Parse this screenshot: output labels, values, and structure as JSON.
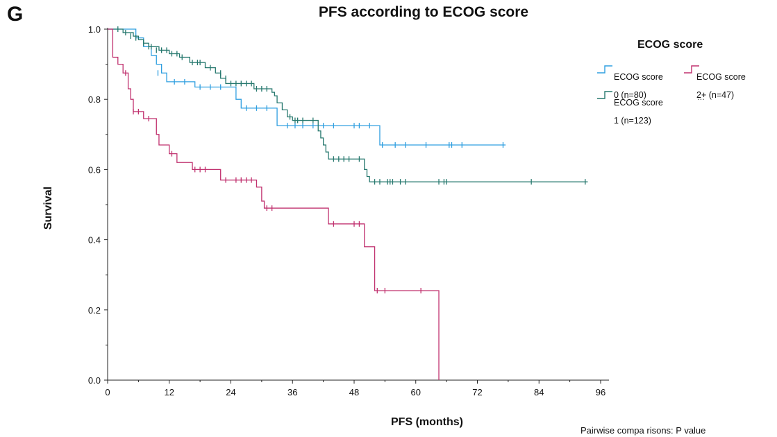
{
  "panel_label": "G",
  "legend_more": "...",
  "footer": "Pairwise compa risons: P value",
  "chart_data": {
    "type": "line",
    "title": "PFS according to ECOG score",
    "xlabel": "PFS (months)",
    "ylabel": "Survival",
    "xlim": [
      0,
      96
    ],
    "ylim": [
      0,
      1
    ],
    "xticks": [
      0,
      12,
      24,
      36,
      48,
      60,
      72,
      84,
      96
    ],
    "xtick_labels": [
      "0",
      "12",
      "24",
      "36",
      "48",
      "60",
      "72",
      "84",
      "96"
    ],
    "yticks": [
      0,
      0.2,
      0.4,
      0.6,
      0.8,
      1.0
    ],
    "ytick_labels": [
      "0.0",
      "0.2",
      "0.4",
      "0.6",
      "0.8",
      "1.0"
    ],
    "grid": false,
    "legend": {
      "title": "ECOG score",
      "position": "top-right"
    },
    "series": [
      {
        "name": "ECOG score 0 (n=80)",
        "color": "#2f9fe0",
        "steps": [
          [
            0,
            1.0
          ],
          [
            5.5,
            0.975
          ],
          [
            7,
            0.95
          ],
          [
            8.5,
            0.925
          ],
          [
            9.5,
            0.9
          ],
          [
            10.5,
            0.875
          ],
          [
            11.5,
            0.85
          ],
          [
            17,
            0.835
          ],
          [
            25,
            0.8
          ],
          [
            26,
            0.775
          ],
          [
            33,
            0.725
          ],
          [
            53,
            0.67
          ],
          [
            77.5,
            0.67
          ]
        ],
        "censored": [
          [
            9.8,
            0.875
          ],
          [
            13,
            0.85
          ],
          [
            15,
            0.85
          ],
          [
            18,
            0.835
          ],
          [
            20,
            0.835
          ],
          [
            22,
            0.835
          ],
          [
            27,
            0.775
          ],
          [
            29,
            0.775
          ],
          [
            31,
            0.775
          ],
          [
            35,
            0.725
          ],
          [
            36.5,
            0.725
          ],
          [
            38,
            0.725
          ],
          [
            40,
            0.725
          ],
          [
            42,
            0.725
          ],
          [
            44,
            0.725
          ],
          [
            48,
            0.725
          ],
          [
            49,
            0.725
          ],
          [
            51,
            0.725
          ],
          [
            53.5,
            0.67
          ],
          [
            56,
            0.67
          ],
          [
            58,
            0.67
          ],
          [
            62,
            0.67
          ],
          [
            66.5,
            0.67
          ],
          [
            67,
            0.67
          ],
          [
            69,
            0.67
          ],
          [
            77,
            0.67
          ]
        ]
      },
      {
        "name": "ECOG score 1 (n=123)",
        "color": "#26786e",
        "steps": [
          [
            0,
            1.0
          ],
          [
            3,
            0.99
          ],
          [
            5,
            0.98
          ],
          [
            6,
            0.97
          ],
          [
            7,
            0.96
          ],
          [
            8,
            0.95
          ],
          [
            10,
            0.94
          ],
          [
            12,
            0.93
          ],
          [
            14,
            0.92
          ],
          [
            16,
            0.905
          ],
          [
            19,
            0.89
          ],
          [
            21,
            0.875
          ],
          [
            22,
            0.86
          ],
          [
            23,
            0.845
          ],
          [
            28.5,
            0.83
          ],
          [
            32,
            0.82
          ],
          [
            32.5,
            0.81
          ],
          [
            33,
            0.79
          ],
          [
            34,
            0.77
          ],
          [
            35,
            0.75
          ],
          [
            36,
            0.74
          ],
          [
            41,
            0.71
          ],
          [
            41.5,
            0.69
          ],
          [
            42,
            0.67
          ],
          [
            42.5,
            0.65
          ],
          [
            43,
            0.63
          ],
          [
            50,
            0.6
          ],
          [
            50.5,
            0.58
          ],
          [
            51,
            0.565
          ],
          [
            93.5,
            0.565
          ]
        ],
        "censored": [
          [
            2,
            1.0
          ],
          [
            3.5,
            0.99
          ],
          [
            4.5,
            0.98
          ],
          [
            5.5,
            0.975
          ],
          [
            7,
            0.96
          ],
          [
            8,
            0.95
          ],
          [
            8.5,
            0.95
          ],
          [
            9.5,
            0.94
          ],
          [
            10.5,
            0.94
          ],
          [
            11.5,
            0.94
          ],
          [
            12.5,
            0.93
          ],
          [
            13.5,
            0.93
          ],
          [
            14.5,
            0.92
          ],
          [
            16.5,
            0.905
          ],
          [
            17.5,
            0.905
          ],
          [
            18,
            0.905
          ],
          [
            20,
            0.89
          ],
          [
            22,
            0.875
          ],
          [
            23,
            0.86
          ],
          [
            24,
            0.845
          ],
          [
            25,
            0.845
          ],
          [
            26,
            0.845
          ],
          [
            27,
            0.845
          ],
          [
            28,
            0.845
          ],
          [
            29,
            0.83
          ],
          [
            30,
            0.83
          ],
          [
            31,
            0.83
          ],
          [
            35.5,
            0.75
          ],
          [
            36.5,
            0.74
          ],
          [
            37,
            0.74
          ],
          [
            38,
            0.74
          ],
          [
            40,
            0.74
          ],
          [
            44,
            0.63
          ],
          [
            45,
            0.63
          ],
          [
            46,
            0.63
          ],
          [
            47,
            0.63
          ],
          [
            49,
            0.63
          ],
          [
            52,
            0.565
          ],
          [
            53,
            0.565
          ],
          [
            54.5,
            0.565
          ],
          [
            55,
            0.565
          ],
          [
            55.5,
            0.565
          ],
          [
            57,
            0.565
          ],
          [
            58,
            0.565
          ],
          [
            64.5,
            0.565
          ],
          [
            65.5,
            0.565
          ],
          [
            66,
            0.565
          ],
          [
            82.5,
            0.565
          ],
          [
            93,
            0.565
          ]
        ]
      },
      {
        "name": "ECOG score 2+ (n=47)",
        "color": "#c0306e",
        "steps": [
          [
            0,
            1.0
          ],
          [
            1,
            0.92
          ],
          [
            2,
            0.9
          ],
          [
            3,
            0.875
          ],
          [
            4,
            0.83
          ],
          [
            4.5,
            0.8
          ],
          [
            5,
            0.765
          ],
          [
            7,
            0.745
          ],
          [
            9.5,
            0.7
          ],
          [
            10,
            0.67
          ],
          [
            12,
            0.645
          ],
          [
            13.5,
            0.62
          ],
          [
            16.5,
            0.6
          ],
          [
            22,
            0.57
          ],
          [
            29,
            0.55
          ],
          [
            30,
            0.51
          ],
          [
            30.5,
            0.49
          ],
          [
            43,
            0.445
          ],
          [
            50,
            0.38
          ],
          [
            52,
            0.255
          ],
          [
            64.5,
            0.0
          ]
        ],
        "censored": [
          [
            3.5,
            0.875
          ],
          [
            5,
            0.765
          ],
          [
            6,
            0.765
          ],
          [
            8,
            0.745
          ],
          [
            12.5,
            0.645
          ],
          [
            17,
            0.6
          ],
          [
            18,
            0.6
          ],
          [
            19,
            0.6
          ],
          [
            23,
            0.57
          ],
          [
            25,
            0.57
          ],
          [
            26,
            0.57
          ],
          [
            27,
            0.57
          ],
          [
            28,
            0.57
          ],
          [
            31,
            0.49
          ],
          [
            32,
            0.49
          ],
          [
            44,
            0.445
          ],
          [
            48,
            0.445
          ],
          [
            49,
            0.445
          ],
          [
            52.5,
            0.255
          ],
          [
            54,
            0.255
          ],
          [
            61,
            0.255
          ]
        ]
      }
    ],
    "legend_entries": [
      {
        "label_line1": "ECOG score",
        "label_line2": "0 (n=80)"
      },
      {
        "label_line1": "ECOG score",
        "label_line2": "2+ (n=47)"
      },
      {
        "label_line1": "ECOG score",
        "label_line2": "1 (n=123)"
      }
    ]
  }
}
